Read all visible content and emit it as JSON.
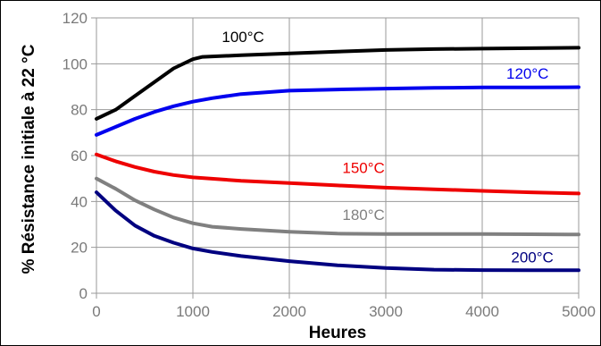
{
  "chart_data": {
    "type": "line",
    "xlabel": "Heures",
    "ylabel": "% Résistance initiale à 22 °C",
    "xlim": [
      0,
      5000
    ],
    "ylim": [
      0,
      120
    ],
    "x_ticks": [
      0,
      1000,
      2000,
      3000,
      4000,
      5000
    ],
    "y_ticks": [
      0,
      20,
      40,
      60,
      80,
      100,
      120
    ],
    "grid": true,
    "legend": "inline labels",
    "series": [
      {
        "name": "100°C",
        "color": "#000000",
        "x": [
          0,
          200,
          400,
          600,
          800,
          1000,
          1100,
          1500,
          2000,
          2500,
          3000,
          3500,
          4000,
          4500,
          5000
        ],
        "y": [
          76,
          80,
          86,
          92,
          98,
          102,
          103,
          103.7,
          104.5,
          105.3,
          106,
          106.4,
          106.6,
          106.8,
          107
        ]
      },
      {
        "name": "120°C",
        "color": "#0000ee",
        "x": [
          0,
          200,
          400,
          600,
          800,
          1000,
          1200,
          1500,
          2000,
          2500,
          3000,
          3500,
          4000,
          4500,
          5000
        ],
        "y": [
          69,
          72.5,
          76,
          79,
          81.5,
          83.5,
          85,
          86.8,
          88.3,
          88.8,
          89.2,
          89.5,
          89.7,
          89.7,
          89.8
        ]
      },
      {
        "name": "150°C",
        "color": "#ee0000",
        "x": [
          0,
          200,
          400,
          600,
          800,
          1000,
          1500,
          2000,
          2500,
          3000,
          3500,
          4000,
          4500,
          5000
        ],
        "y": [
          60.5,
          57.5,
          55,
          53,
          51.5,
          50.5,
          49,
          48,
          47,
          46,
          45.3,
          44.6,
          44,
          43.5
        ]
      },
      {
        "name": "180°C",
        "color": "#808080",
        "x": [
          0,
          200,
          400,
          600,
          800,
          1000,
          1200,
          1500,
          2000,
          2500,
          3000,
          3500,
          4000,
          4500,
          5000
        ],
        "y": [
          50,
          45.5,
          40.5,
          36.5,
          33,
          30.5,
          29,
          28,
          26.8,
          26,
          25.8,
          25.8,
          25.8,
          25.7,
          25.6
        ]
      },
      {
        "name": "200°C",
        "color": "#000080",
        "x": [
          0,
          200,
          400,
          600,
          800,
          1000,
          1200,
          1500,
          2000,
          2500,
          3000,
          3500,
          4000,
          4500,
          5000
        ],
        "y": [
          44,
          36,
          29.5,
          25,
          22,
          19.5,
          18,
          16.2,
          14,
          12.2,
          11,
          10.3,
          10.1,
          10,
          10
        ]
      }
    ],
    "annotations": [
      {
        "text": "100°C",
        "x": 1300,
        "y": 109.5,
        "color": "#000000"
      },
      {
        "text": "120°C",
        "x": 4250,
        "y": 93.5,
        "color": "#0000ee"
      },
      {
        "text": "150°C",
        "x": 2550,
        "y": 52.5,
        "color": "#ee0000"
      },
      {
        "text": "180°C",
        "x": 2550,
        "y": 32.0,
        "color": "#808080"
      },
      {
        "text": "200°C",
        "x": 4300,
        "y": 13.5,
        "color": "#000080"
      }
    ]
  }
}
